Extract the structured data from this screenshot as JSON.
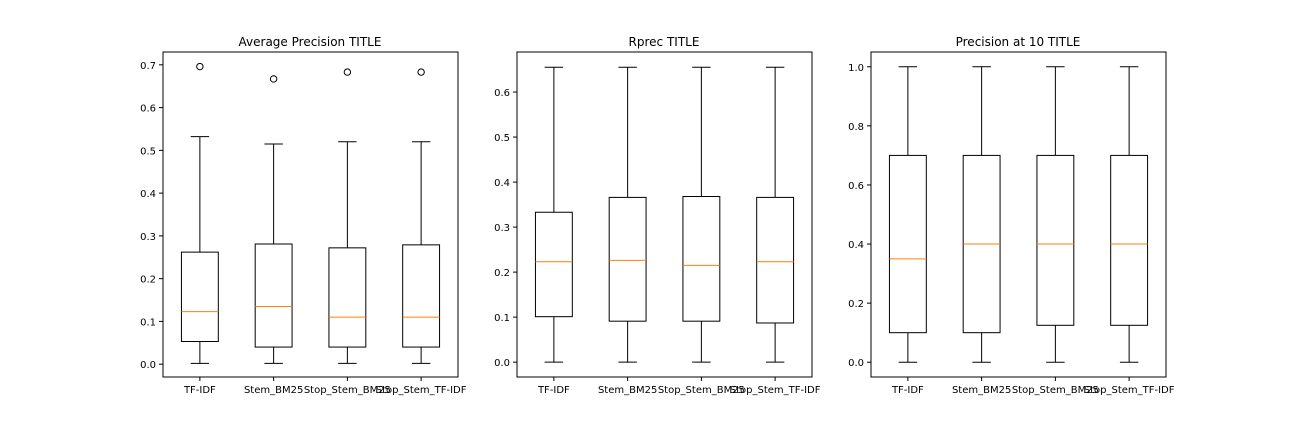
{
  "chart_data": [
    {
      "type": "box",
      "title": "Average Precision TITLE",
      "categories": [
        "TF-IDF",
        "Stem_BM25",
        "Stop_Stem_BM25",
        "Stop_Stem_TF-IDF"
      ],
      "ylim": [
        -0.03,
        0.73
      ],
      "yticks": [
        0.0,
        0.1,
        0.2,
        0.3,
        0.4,
        0.5,
        0.6,
        0.7
      ],
      "ytick_labels": [
        "0.0",
        "0.1",
        "0.2",
        "0.3",
        "0.4",
        "0.5",
        "0.6",
        "0.7"
      ],
      "boxes": [
        {
          "whislo": 0.002,
          "q1": 0.053,
          "med": 0.123,
          "q3": 0.262,
          "whishi": 0.532,
          "fliers": [
            0.696
          ]
        },
        {
          "whislo": 0.002,
          "q1": 0.04,
          "med": 0.135,
          "q3": 0.281,
          "whishi": 0.515,
          "fliers": [
            0.667
          ]
        },
        {
          "whislo": 0.002,
          "q1": 0.04,
          "med": 0.11,
          "q3": 0.272,
          "whishi": 0.52,
          "fliers": [
            0.683
          ]
        },
        {
          "whislo": 0.002,
          "q1": 0.04,
          "med": 0.11,
          "q3": 0.279,
          "whishi": 0.52,
          "fliers": [
            0.683
          ]
        }
      ]
    },
    {
      "type": "box",
      "title": "Rprec TITLE",
      "categories": [
        "TF-IDF",
        "Stem_BM25",
        "Stop_Stem_BM25",
        "Stop_Stem_TF-IDF"
      ],
      "ylim": [
        -0.033,
        0.689
      ],
      "yticks": [
        0.0,
        0.1,
        0.2,
        0.3,
        0.4,
        0.5,
        0.6
      ],
      "ytick_labels": [
        "0.0",
        "0.1",
        "0.2",
        "0.3",
        "0.4",
        "0.5",
        "0.6"
      ],
      "boxes": [
        {
          "whislo": 0.0,
          "q1": 0.101,
          "med": 0.223,
          "q3": 0.333,
          "whishi": 0.655,
          "fliers": []
        },
        {
          "whislo": 0.0,
          "q1": 0.091,
          "med": 0.226,
          "q3": 0.366,
          "whishi": 0.655,
          "fliers": []
        },
        {
          "whislo": 0.0,
          "q1": 0.091,
          "med": 0.215,
          "q3": 0.368,
          "whishi": 0.655,
          "fliers": []
        },
        {
          "whislo": 0.0,
          "q1": 0.087,
          "med": 0.223,
          "q3": 0.366,
          "whishi": 0.655,
          "fliers": []
        }
      ]
    },
    {
      "type": "box",
      "title": "Precision at 10 TITLE",
      "categories": [
        "TF-IDF",
        "Stem_BM25",
        "Stop_Stem_BM25",
        "Stop_Stem_TF-IDF"
      ],
      "ylim": [
        -0.05,
        1.05
      ],
      "yticks": [
        0.0,
        0.2,
        0.4,
        0.6,
        0.8,
        1.0
      ],
      "ytick_labels": [
        "0.0",
        "0.2",
        "0.4",
        "0.6",
        "0.8",
        "1.0"
      ],
      "boxes": [
        {
          "whislo": 0.0,
          "q1": 0.1,
          "med": 0.35,
          "q3": 0.7,
          "whishi": 1.0,
          "fliers": []
        },
        {
          "whislo": 0.0,
          "q1": 0.1,
          "med": 0.4,
          "q3": 0.7,
          "whishi": 1.0,
          "fliers": []
        },
        {
          "whislo": 0.0,
          "q1": 0.125,
          "med": 0.4,
          "q3": 0.7,
          "whishi": 1.0,
          "fliers": []
        },
        {
          "whislo": 0.0,
          "q1": 0.125,
          "med": 0.4,
          "q3": 0.7,
          "whishi": 1.0,
          "fliers": []
        }
      ]
    }
  ],
  "colors": {
    "median": "#ff7f0e",
    "box": "#000000",
    "background": "#ffffff"
  }
}
